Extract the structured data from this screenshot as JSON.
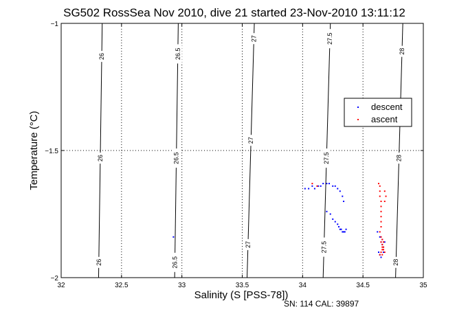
{
  "chart_data": {
    "type": "scatter",
    "title": "SG502 RossSea Nov 2010, dive 21 started 23-Nov-2010 13:11:12",
    "xlabel": "Salinity (S [PSS-78])",
    "ylabel": "Temperature (°C)",
    "xlim": [
      32,
      35
    ],
    "ylim": [
      -2,
      -1
    ],
    "x_ticks": [
      "32",
      "32.5",
      "33",
      "33.5",
      "34",
      "34.5",
      "35"
    ],
    "y_ticks": [
      "-2",
      "-1.5",
      "-1"
    ],
    "grid": true,
    "legend_position": "right",
    "footnote": "SN: 114  CAL: 39897",
    "contours": [
      {
        "label": "26",
        "x_top": 32.34,
        "x_bottom": 32.31,
        "label_y": [
          -1.13,
          -1.53,
          -1.94
        ]
      },
      {
        "label": "26.5",
        "x_top": 32.97,
        "x_bottom": 32.94,
        "label_y": [
          -1.12,
          -1.53,
          -1.94
        ]
      },
      {
        "label": "27",
        "x_top": 33.6,
        "x_bottom": 33.54,
        "label_y": [
          -1.06,
          -1.46,
          -1.87
        ]
      },
      {
        "label": "27.5",
        "x_top": 34.23,
        "x_bottom": 34.17,
        "label_y": [
          -1.06,
          -1.53,
          -1.88
        ]
      },
      {
        "label": "28",
        "x_top": 34.83,
        "x_bottom": 34.77,
        "label_y": [
          -1.11,
          -1.53,
          -1.94
        ]
      }
    ],
    "series": [
      {
        "name": "descent",
        "color": "#0000ff",
        "x": [
          32.93,
          34.02,
          34.05,
          34.08,
          34.1,
          34.13,
          34.15,
          34.17,
          34.2,
          34.22,
          34.25,
          34.27,
          34.29,
          34.31,
          34.33,
          34.34,
          34.2,
          34.23,
          34.25,
          34.27,
          34.29,
          34.3,
          34.31,
          34.32,
          34.33,
          34.34,
          34.35,
          34.36,
          34.62,
          34.64,
          34.65,
          34.66,
          34.67,
          34.63,
          34.64,
          34.66,
          34.68,
          34.65,
          34.67
        ],
        "y": [
          -1.84,
          -1.65,
          -1.65,
          -1.64,
          -1.65,
          -1.64,
          -1.64,
          -1.63,
          -1.63,
          -1.63,
          -1.64,
          -1.64,
          -1.65,
          -1.66,
          -1.68,
          -1.7,
          -1.74,
          -1.75,
          -1.77,
          -1.78,
          -1.79,
          -1.8,
          -1.81,
          -1.81,
          -1.82,
          -1.82,
          -1.82,
          -1.81,
          -1.82,
          -1.84,
          -1.86,
          -1.87,
          -1.88,
          -1.9,
          -1.91,
          -1.85,
          -1.86,
          -1.92,
          -1.9
        ]
      },
      {
        "name": "ascent",
        "color": "#ff0000",
        "x": [
          34.08,
          34.12,
          34.63,
          34.64,
          34.64,
          34.64,
          34.65,
          34.65,
          34.65,
          34.65,
          34.65,
          34.65,
          34.64,
          34.65,
          34.65,
          34.66,
          34.66,
          34.66,
          34.66,
          34.67,
          34.67,
          34.68,
          34.64,
          34.65,
          34.66,
          34.67,
          34.69,
          34.68,
          34.68
        ],
        "y": [
          -1.63,
          -1.64,
          -1.63,
          -1.64,
          -1.66,
          -1.68,
          -1.7,
          -1.72,
          -1.74,
          -1.76,
          -1.78,
          -1.8,
          -1.82,
          -1.84,
          -1.86,
          -1.85,
          -1.87,
          -1.88,
          -1.89,
          -1.86,
          -1.88,
          -1.9,
          -1.91,
          -1.9,
          -1.91,
          -1.89,
          -1.68,
          -1.66,
          -1.7
        ]
      }
    ]
  }
}
